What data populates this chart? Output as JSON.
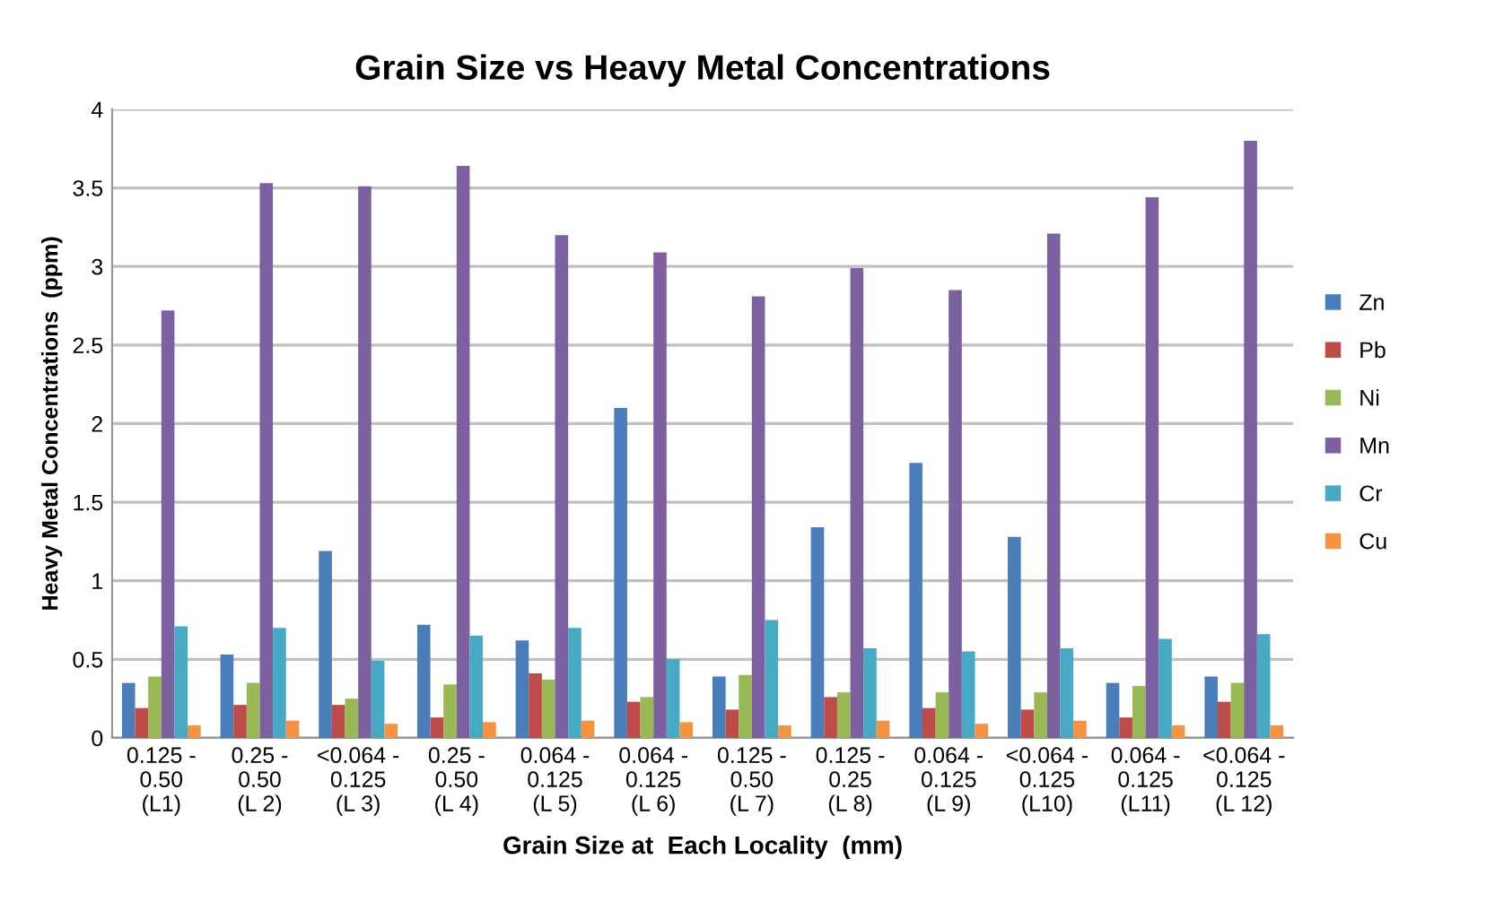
{
  "chart_data": {
    "type": "bar",
    "title": "Grain Size vs Heavy Metal Concentrations",
    "xlabel": "Grain Size at  Each Locality  (mm)",
    "ylabel": "Heavy Metal Concentrations  (ppm)",
    "categories": [
      "0.125 -\n0.50\n(L1)",
      "0.25 -\n0.50\n(L 2)",
      "<0.064 -\n0.125\n(L 3)",
      "0.25 -\n0.50\n(L 4)",
      "0.064 -\n0.125\n(L 5)",
      "0.064 -\n0.125\n(L 6)",
      "0.125 -\n0.50\n(L 7)",
      "0.125 -\n0.25\n(L 8)",
      "0.064 -\n0.125\n(L 9)",
      "<0.064 -\n0.125\n(L10)",
      "0.064 -\n0.125\n(L11)",
      "<0.064 -\n0.125\n(L 12)"
    ],
    "series": [
      {
        "name": "Zn",
        "color": "#4a7ebb",
        "values": [
          0.35,
          0.53,
          1.19,
          0.72,
          0.62,
          2.1,
          0.39,
          1.34,
          1.75,
          1.28,
          0.35,
          0.39
        ]
      },
      {
        "name": "Pb",
        "color": "#be4b48",
        "values": [
          0.19,
          0.21,
          0.21,
          0.13,
          0.41,
          0.23,
          0.18,
          0.26,
          0.19,
          0.18,
          0.13,
          0.23
        ]
      },
      {
        "name": "Ni",
        "color": "#98b954",
        "values": [
          0.39,
          0.35,
          0.25,
          0.34,
          0.37,
          0.26,
          0.4,
          0.29,
          0.29,
          0.29,
          0.33,
          0.35
        ]
      },
      {
        "name": "Mn",
        "color": "#7d60a0",
        "values": [
          2.72,
          3.53,
          3.51,
          3.64,
          3.2,
          3.09,
          2.81,
          2.99,
          2.85,
          3.21,
          3.44,
          3.8
        ]
      },
      {
        "name": "Cr",
        "color": "#46aac5",
        "values": [
          0.71,
          0.7,
          0.49,
          0.65,
          0.7,
          0.5,
          0.75,
          0.57,
          0.55,
          0.57,
          0.63,
          0.66
        ]
      },
      {
        "name": "Cu",
        "color": "#f69240",
        "values": [
          0.08,
          0.11,
          0.09,
          0.1,
          0.11,
          0.1,
          0.08,
          0.11,
          0.09,
          0.11,
          0.08,
          0.08
        ]
      }
    ],
    "ylim": [
      0,
      4
    ],
    "yticks": [
      0,
      {
        "value": 0.5,
        "label": "0.5"
      },
      1,
      {
        "value": 1.5,
        "label": "1.5"
      },
      2,
      {
        "value": 2.5,
        "label": "2.5"
      },
      3,
      {
        "value": 3.5,
        "label": "3.5"
      },
      4
    ],
    "grid": "y",
    "legend": "right"
  }
}
